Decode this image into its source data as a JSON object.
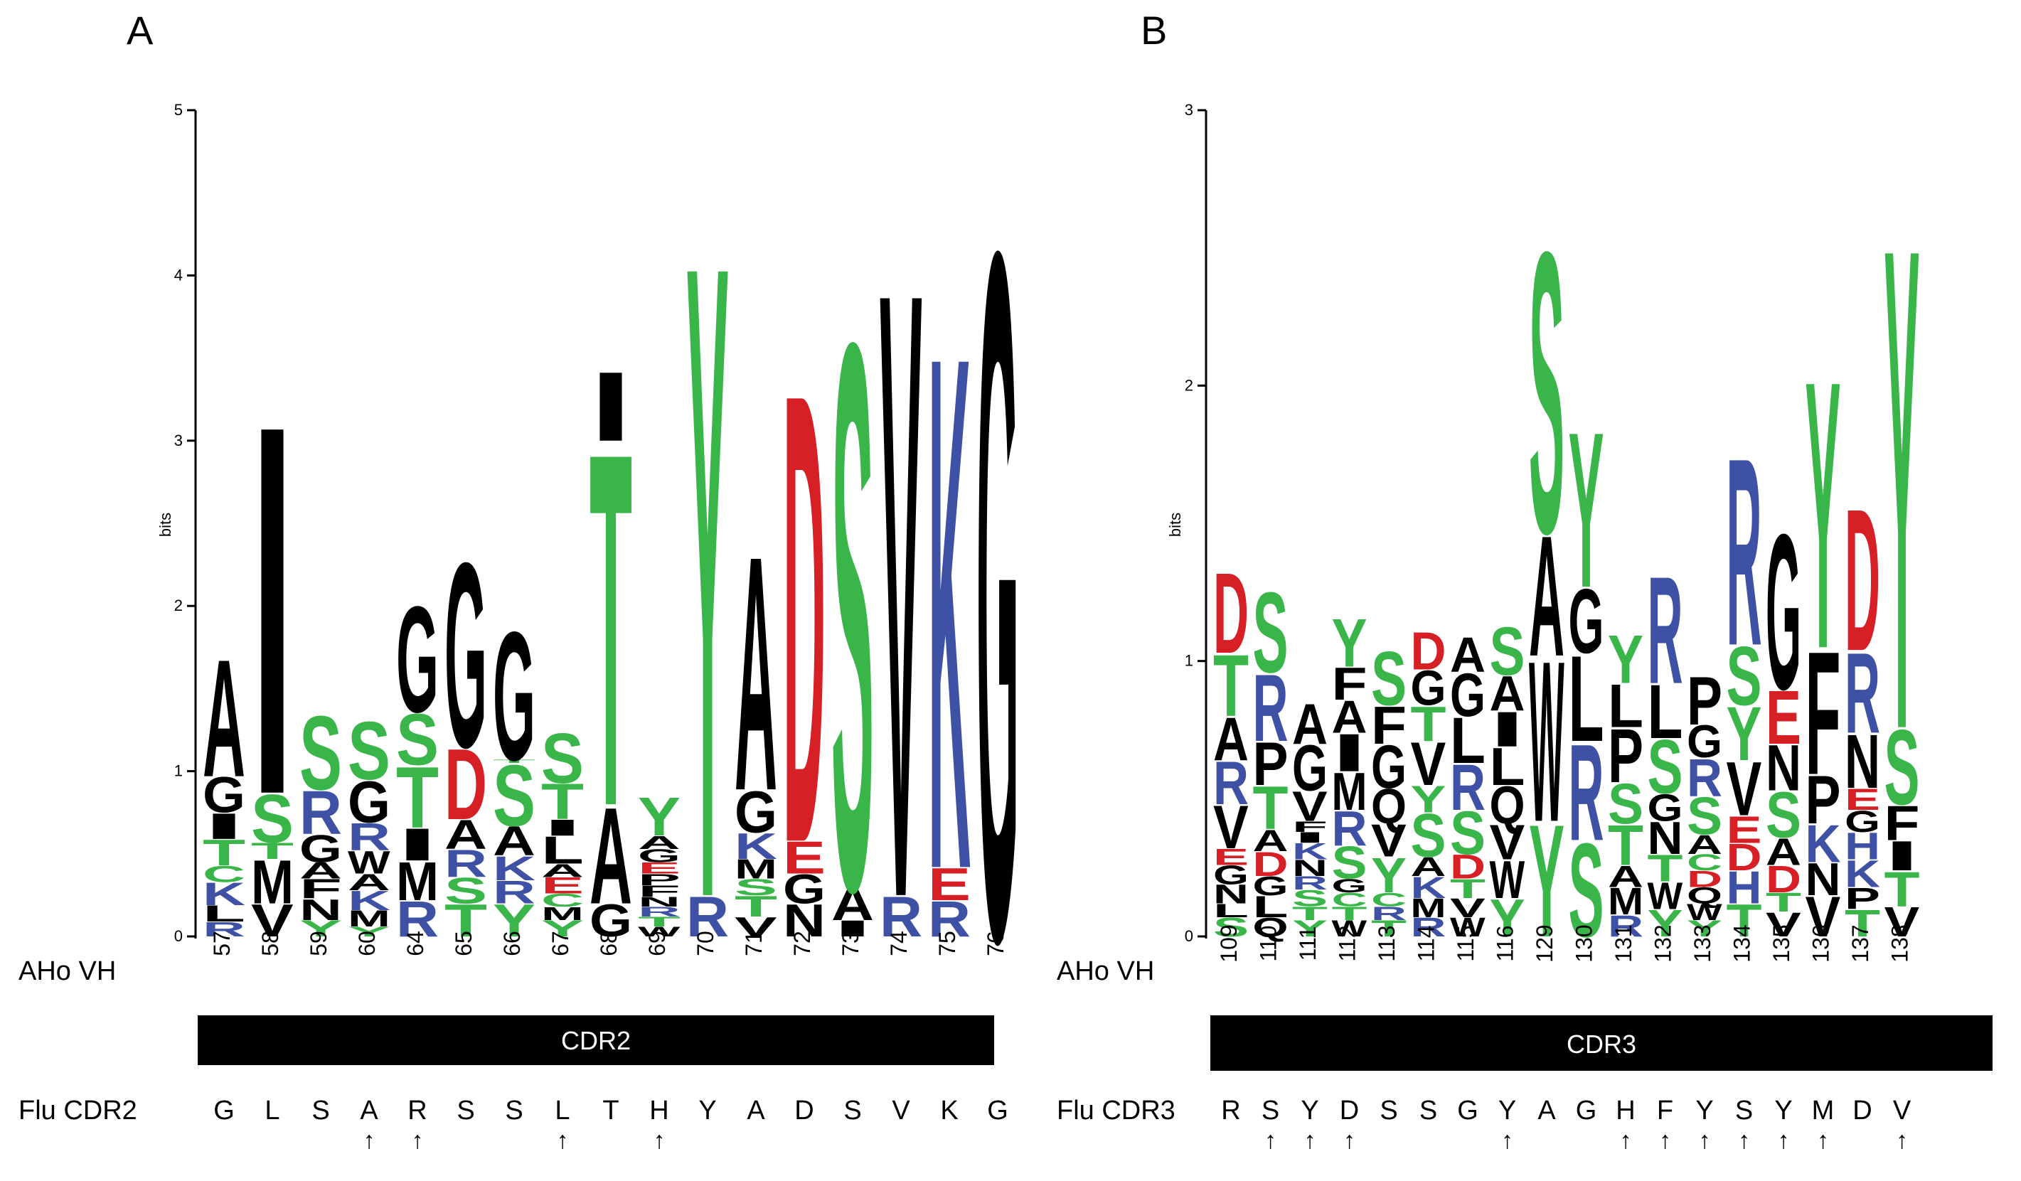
{
  "figure": {
    "colors": {
      "green": "#3ab54a",
      "blue": "#3f51a4",
      "red": "#d71f26",
      "black": "#000000"
    },
    "row_label_position": "AHo VH",
    "flu_marker": "↑"
  },
  "chart_data": [
    {
      "type": "sequence-logo",
      "panel": "A",
      "ylabel": "bits",
      "ylim": [
        0,
        5
      ],
      "yticks": [
        "0",
        "1",
        "2",
        "3",
        "4",
        "5"
      ],
      "region": "CDR2",
      "flu_label": "Flu CDR2",
      "positions": [
        "57",
        "58",
        "59",
        "60",
        "64",
        "65",
        "66",
        "67",
        "68",
        "69",
        "70",
        "71",
        "72",
        "73",
        "74",
        "75",
        "76"
      ],
      "flu_sequence": [
        "G",
        "L",
        "S",
        "A",
        "R",
        "S",
        "S",
        "L",
        "T",
        "H",
        "Y",
        "A",
        "D",
        "S",
        "V",
        "K",
        "G"
      ],
      "flu_arrows": [
        false,
        false,
        false,
        true,
        true,
        false,
        false,
        true,
        false,
        true,
        false,
        false,
        false,
        false,
        false,
        false,
        false
      ],
      "stacks": [
        [
          [
            "R",
            0.09
          ],
          [
            "L",
            0.1
          ],
          [
            "K",
            0.14
          ],
          [
            "C",
            0.1
          ],
          [
            "T",
            0.16
          ],
          [
            "I",
            0.16
          ],
          [
            "G",
            0.22
          ],
          [
            "A",
            0.73
          ]
        ],
        [
          [
            "V",
            0.2
          ],
          [
            "M",
            0.27
          ],
          [
            "T",
            0.1
          ],
          [
            "S",
            0.3
          ],
          [
            "I",
            2.3
          ]
        ],
        [
          [
            "Y",
            0.1
          ],
          [
            "N",
            0.13
          ],
          [
            "F",
            0.12
          ],
          [
            "A",
            0.1
          ],
          [
            "G",
            0.17
          ],
          [
            "R",
            0.27
          ],
          [
            "S",
            0.46
          ]
        ],
        [
          [
            "Y",
            0.06
          ],
          [
            "M",
            0.1
          ],
          [
            "K",
            0.12
          ],
          [
            "A",
            0.1
          ],
          [
            "W",
            0.14
          ],
          [
            "R",
            0.17
          ],
          [
            "G",
            0.26
          ],
          [
            "S",
            0.36
          ]
        ],
        [
          [
            "R",
            0.22
          ],
          [
            "M",
            0.24
          ],
          [
            "I",
            0.2
          ],
          [
            "T",
            0.38
          ],
          [
            "S",
            0.32
          ],
          [
            "G",
            0.66
          ]
        ],
        [
          [
            "T",
            0.2
          ],
          [
            "S",
            0.16
          ],
          [
            "R",
            0.17
          ],
          [
            "A",
            0.18
          ],
          [
            "D",
            0.44
          ],
          [
            "G",
            1.15
          ]
        ],
        [
          [
            "Y",
            0.2
          ],
          [
            "R",
            0.14
          ],
          [
            "K",
            0.15
          ],
          [
            "A",
            0.18
          ],
          [
            "S",
            0.38
          ],
          [
            "T",
            0.02
          ],
          [
            "G",
            0.8
          ]
        ],
        [
          [
            "Y",
            0.1
          ],
          [
            "M",
            0.08
          ],
          [
            "C",
            0.08
          ],
          [
            "E",
            0.1
          ],
          [
            "A",
            0.08
          ],
          [
            "L",
            0.17
          ],
          [
            "I",
            0.1
          ],
          [
            "T",
            0.22
          ],
          [
            "S",
            0.31
          ]
        ],
        [
          [
            "G",
            0.2
          ],
          [
            "A",
            0.6
          ],
          [
            "T",
            2.2
          ],
          [
            "I",
            0.43
          ]
        ],
        [
          [
            "W",
            0.06
          ],
          [
            "T",
            0.06
          ],
          [
            "R",
            0.06
          ],
          [
            "N",
            0.06
          ],
          [
            "F",
            0.07
          ],
          [
            "P",
            0.07
          ],
          [
            "E",
            0.07
          ],
          [
            "G",
            0.08
          ],
          [
            "A",
            0.08
          ],
          [
            "Y",
            0.24
          ]
        ],
        [
          [
            "R",
            0.25
          ],
          [
            "Y",
            3.95
          ]
        ],
        [
          [
            "V",
            0.12
          ],
          [
            "T",
            0.13
          ],
          [
            "S",
            0.1
          ],
          [
            "M",
            0.12
          ],
          [
            "K",
            0.16
          ],
          [
            "G",
            0.26
          ],
          [
            "A",
            1.46
          ]
        ],
        [
          [
            "N",
            0.2
          ],
          [
            "G",
            0.18
          ],
          [
            "E",
            0.2
          ],
          [
            "D",
            2.8
          ]
        ],
        [
          [
            "I",
            0.1
          ],
          [
            "A",
            0.2
          ],
          [
            "S",
            3.4
          ]
        ],
        [
          [
            "R",
            0.25
          ],
          [
            "V",
            3.78
          ]
        ],
        [
          [
            "R",
            0.22
          ],
          [
            "E",
            0.2
          ],
          [
            "K",
            3.2
          ]
        ],
        [
          [
            "G",
            4.28
          ]
        ]
      ]
    },
    {
      "type": "sequence-logo",
      "panel": "B",
      "ylabel": "bits",
      "ylim": [
        0,
        3
      ],
      "yticks": [
        "0",
        "1",
        "2",
        "3"
      ],
      "region": "CDR3",
      "flu_label": "Flu CDR3",
      "positions": [
        "109",
        "110",
        "111",
        "112",
        "113",
        "114",
        "115",
        "116",
        "129",
        "130",
        "131",
        "132",
        "133",
        "134",
        "135",
        "136",
        "137",
        "138"
      ],
      "flu_sequence": [
        "R",
        "S",
        "Y",
        "D",
        "S",
        "S",
        "G",
        "Y",
        "A",
        "G",
        "H",
        "F",
        "Y",
        "S",
        "Y",
        "M",
        "D",
        "V"
      ],
      "flu_arrows": [
        false,
        true,
        true,
        true,
        false,
        false,
        false,
        true,
        false,
        false,
        true,
        true,
        true,
        true,
        true,
        true,
        false,
        true
      ],
      "stacks": [
        [
          [
            "S",
            0.07
          ],
          [
            "L",
            0.05
          ],
          [
            "N",
            0.07
          ],
          [
            "G",
            0.07
          ],
          [
            "E",
            0.06
          ],
          [
            "V",
            0.16
          ],
          [
            "R",
            0.16
          ],
          [
            "A",
            0.16
          ],
          [
            "T",
            0.23
          ],
          [
            "D",
            0.3
          ]
        ],
        [
          [
            "Q",
            0.07
          ],
          [
            "L",
            0.08
          ],
          [
            "G",
            0.07
          ],
          [
            "D",
            0.09
          ],
          [
            "A",
            0.08
          ],
          [
            "T",
            0.16
          ],
          [
            "P",
            0.16
          ],
          [
            "R",
            0.25
          ],
          [
            "S",
            0.3
          ]
        ],
        [
          [
            "Y",
            0.06
          ],
          [
            "T",
            0.05
          ],
          [
            "S",
            0.06
          ],
          [
            "R",
            0.05
          ],
          [
            "N",
            0.06
          ],
          [
            "K",
            0.06
          ],
          [
            "I",
            0.04
          ],
          [
            "F",
            0.04
          ],
          [
            "V",
            0.11
          ],
          [
            "G",
            0.17
          ],
          [
            "A",
            0.15
          ]
        ],
        [
          [
            "W",
            0.06
          ],
          [
            "T",
            0.05
          ],
          [
            "C",
            0.05
          ],
          [
            "G",
            0.05
          ],
          [
            "S",
            0.12
          ],
          [
            "R",
            0.13
          ],
          [
            "M",
            0.14
          ],
          [
            "I",
            0.14
          ],
          [
            "A",
            0.12
          ],
          [
            "F",
            0.12
          ],
          [
            "Y",
            0.18
          ]
        ],
        [
          [
            "T",
            0.06
          ],
          [
            "R",
            0.05
          ],
          [
            "C",
            0.05
          ],
          [
            "Y",
            0.13
          ],
          [
            "V",
            0.12
          ],
          [
            "Q",
            0.13
          ],
          [
            "G",
            0.16
          ],
          [
            "F",
            0.14
          ],
          [
            "S",
            0.2
          ]
        ],
        [
          [
            "R",
            0.07
          ],
          [
            "M",
            0.07
          ],
          [
            "K",
            0.08
          ],
          [
            "A",
            0.07
          ],
          [
            "S",
            0.16
          ],
          [
            "Y",
            0.1
          ],
          [
            "V",
            0.16
          ],
          [
            "T",
            0.13
          ],
          [
            "G",
            0.13
          ],
          [
            "D",
            0.14
          ]
        ],
        [
          [
            "W",
            0.07
          ],
          [
            "V",
            0.07
          ],
          [
            "T",
            0.07
          ],
          [
            "D",
            0.09
          ],
          [
            "S",
            0.16
          ],
          [
            "R",
            0.17
          ],
          [
            "L",
            0.17
          ],
          [
            "G",
            0.16
          ],
          [
            "A",
            0.13
          ]
        ],
        [
          [
            "Y",
            0.14
          ],
          [
            "W",
            0.14
          ],
          [
            "V",
            0.13
          ],
          [
            "Q",
            0.14
          ],
          [
            "L",
            0.14
          ],
          [
            "I",
            0.13
          ],
          [
            "A",
            0.13
          ],
          [
            "S",
            0.18
          ]
        ],
        [
          [
            "Y",
            0.42
          ],
          [
            "W",
            0.6
          ],
          [
            "A",
            0.45
          ],
          [
            "S",
            1.05
          ]
        ],
        [
          [
            "S",
            0.35
          ],
          [
            "R",
            0.36
          ],
          [
            "L",
            0.32
          ],
          [
            "G",
            0.24
          ],
          [
            "Y",
            0.58
          ]
        ],
        [
          [
            "R",
            0.08
          ],
          [
            "M",
            0.1
          ],
          [
            "A",
            0.08
          ],
          [
            "T",
            0.15
          ],
          [
            "S",
            0.15
          ],
          [
            "P",
            0.2
          ],
          [
            "L",
            0.16
          ],
          [
            "Y",
            0.18
          ]
        ],
        [
          [
            "Y",
            0.1
          ],
          [
            "W",
            0.1
          ],
          [
            "T",
            0.1
          ],
          [
            "N",
            0.12
          ],
          [
            "G",
            0.1
          ],
          [
            "S",
            0.2
          ],
          [
            "L",
            0.2
          ],
          [
            "R",
            0.4
          ]
        ],
        [
          [
            "Y",
            0.06
          ],
          [
            "W",
            0.06
          ],
          [
            "Q",
            0.06
          ],
          [
            "D",
            0.06
          ],
          [
            "C",
            0.06
          ],
          [
            "A",
            0.07
          ],
          [
            "S",
            0.14
          ],
          [
            "R",
            0.14
          ],
          [
            "G",
            0.12
          ],
          [
            "P",
            0.18
          ]
        ],
        [
          [
            "T",
            0.12
          ],
          [
            "H",
            0.12
          ],
          [
            "D",
            0.1
          ],
          [
            "E",
            0.1
          ],
          [
            "V",
            0.2
          ],
          [
            "Y",
            0.2
          ],
          [
            "S",
            0.22
          ],
          [
            "R",
            0.7
          ]
        ],
        [
          [
            "V",
            0.09
          ],
          [
            "T",
            0.07
          ],
          [
            "D",
            0.1
          ],
          [
            "A",
            0.1
          ],
          [
            "S",
            0.17
          ],
          [
            "N",
            0.17
          ],
          [
            "E",
            0.2
          ],
          [
            "G",
            0.58
          ]
        ],
        [
          [
            "V",
            0.15
          ],
          [
            "N",
            0.12
          ],
          [
            "K",
            0.14
          ],
          [
            "P",
            0.18
          ],
          [
            "F",
            0.46
          ],
          [
            "Y",
            1.0
          ]
        ],
        [
          [
            "T",
            0.1
          ],
          [
            "P",
            0.08
          ],
          [
            "K",
            0.1
          ],
          [
            "H",
            0.1
          ],
          [
            "G",
            0.08
          ],
          [
            "E",
            0.08
          ],
          [
            "N",
            0.2
          ],
          [
            "R",
            0.3
          ],
          [
            "D",
            0.53
          ]
        ],
        [
          [
            "V",
            0.11
          ],
          [
            "T",
            0.13
          ],
          [
            "I",
            0.11
          ],
          [
            "F",
            0.13
          ],
          [
            "S",
            0.28
          ],
          [
            "Y",
            1.8
          ]
        ]
      ]
    }
  ]
}
